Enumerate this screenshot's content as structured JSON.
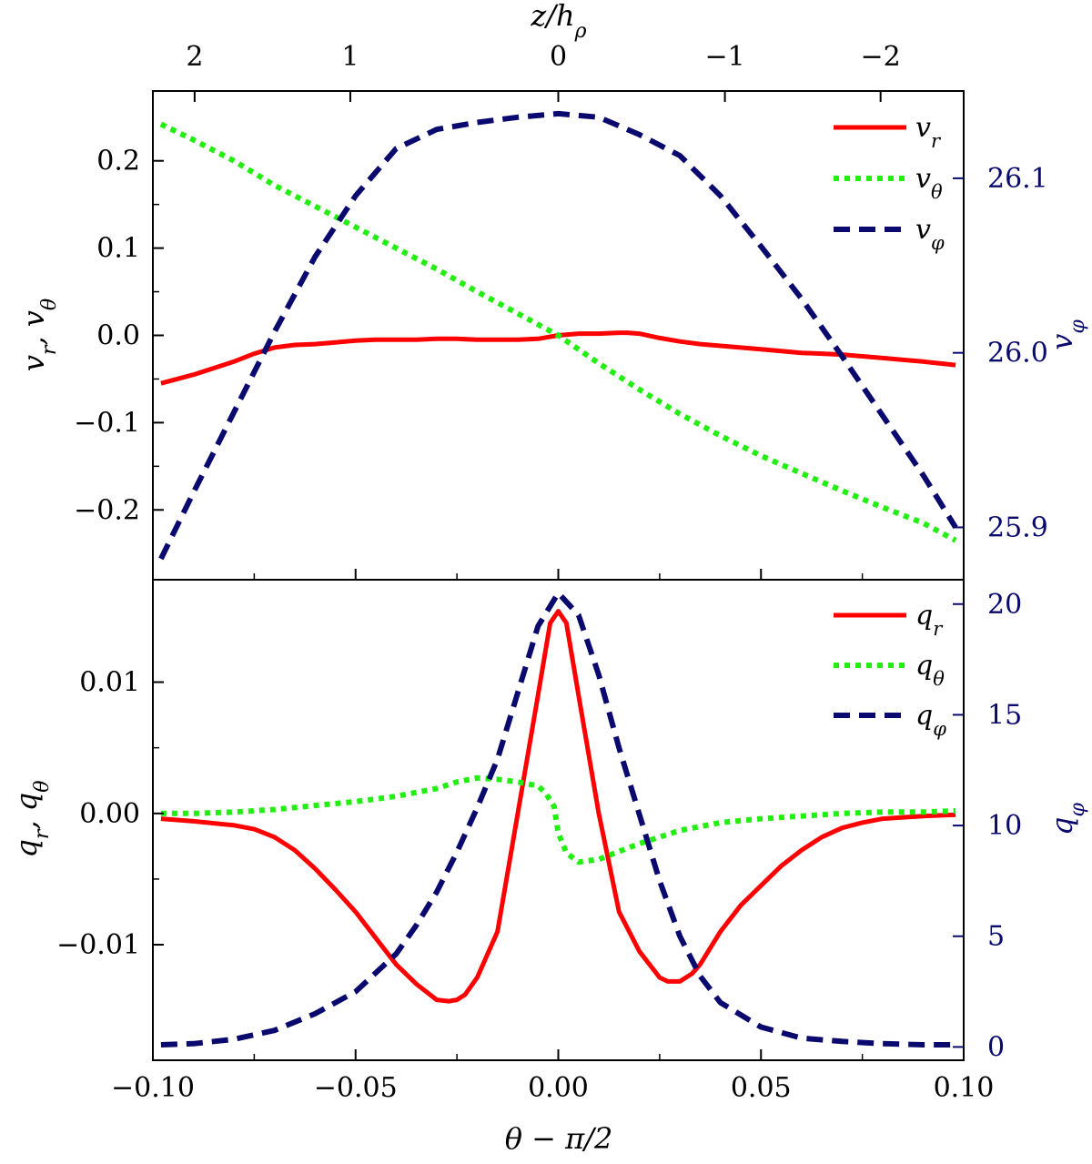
{
  "colors": {
    "red": "#ff0000",
    "green": "#22ee11",
    "navy": "#0a0a6e",
    "axis": "#000000"
  },
  "chart_data": [
    {
      "type": "line",
      "panel": "top",
      "xlim": [
        -0.1,
        0.1
      ],
      "ylabel_left": "v_r, v_θ",
      "ylabel_right": "v_φ",
      "ylim_left": [
        -0.28,
        0.28
      ],
      "ylim_right": [
        25.87,
        26.15
      ],
      "yticks_left": [
        {
          "v": -0.2,
          "t": "−0.2"
        },
        {
          "v": -0.1,
          "t": "−0.1"
        },
        {
          "v": 0.0,
          "t": "0.0"
        },
        {
          "v": 0.1,
          "t": "0.1"
        },
        {
          "v": 0.2,
          "t": "0.2"
        }
      ],
      "yticks_right": [
        {
          "v": 25.9,
          "t": "25.9"
        },
        {
          "v": 26.0,
          "t": "26.0"
        },
        {
          "v": 26.1,
          "t": "26.1"
        }
      ],
      "top_axis_label": "z/h_ρ",
      "top_ticks": [
        {
          "x": -0.0897,
          "t": "2"
        },
        {
          "x": -0.0513,
          "t": "1"
        },
        {
          "x": 0.0,
          "t": "0"
        },
        {
          "x": 0.0411,
          "t": "−1"
        },
        {
          "x": 0.0795,
          "t": "−2"
        }
      ],
      "series": [
        {
          "name": "v_r",
          "label": "v",
          "sub": "r",
          "axis": "left",
          "color": "red",
          "style": "solid",
          "x": [
            -0.098,
            -0.09,
            -0.08,
            -0.075,
            -0.07,
            -0.065,
            -0.06,
            -0.055,
            -0.05,
            -0.045,
            -0.04,
            -0.035,
            -0.03,
            -0.025,
            -0.02,
            -0.015,
            -0.01,
            -0.005,
            0.0,
            0.005,
            0.01,
            0.015,
            0.017,
            0.02,
            0.025,
            0.03,
            0.035,
            0.04,
            0.045,
            0.05,
            0.055,
            0.06,
            0.065,
            0.07,
            0.075,
            0.08,
            0.085,
            0.09,
            0.098
          ],
          "y": [
            -0.055,
            -0.045,
            -0.03,
            -0.021,
            -0.014,
            -0.011,
            -0.01,
            -0.008,
            -0.006,
            -0.005,
            -0.005,
            -0.005,
            -0.004,
            -0.004,
            -0.005,
            -0.005,
            -0.005,
            -0.004,
            0.0,
            0.002,
            0.002,
            0.003,
            0.003,
            0.002,
            -0.003,
            -0.007,
            -0.01,
            -0.012,
            -0.014,
            -0.016,
            -0.018,
            -0.02,
            -0.021,
            -0.022,
            -0.024,
            -0.026,
            -0.028,
            -0.03,
            -0.034
          ]
        },
        {
          "name": "v_θ",
          "label": "v",
          "sub": "θ",
          "axis": "left",
          "color": "green",
          "style": "dotted",
          "x": [
            -0.098,
            -0.09,
            -0.08,
            -0.07,
            -0.06,
            -0.05,
            -0.04,
            -0.03,
            -0.02,
            -0.01,
            0.0,
            0.01,
            0.02,
            0.03,
            0.04,
            0.05,
            0.06,
            0.07,
            0.08,
            0.09,
            0.098
          ],
          "y": [
            0.242,
            0.224,
            0.2,
            0.172,
            0.148,
            0.124,
            0.1,
            0.076,
            0.05,
            0.025,
            0.0,
            -0.032,
            -0.062,
            -0.09,
            -0.115,
            -0.138,
            -0.158,
            -0.178,
            -0.197,
            -0.215,
            -0.235
          ]
        },
        {
          "name": "v_φ",
          "label": "v",
          "sub": "φ",
          "axis": "right",
          "color": "navy",
          "style": "dashed",
          "x": [
            -0.098,
            -0.09,
            -0.08,
            -0.07,
            -0.06,
            -0.05,
            -0.04,
            -0.03,
            -0.02,
            -0.01,
            0.0,
            0.01,
            0.02,
            0.03,
            0.04,
            0.05,
            0.06,
            0.07,
            0.08,
            0.09,
            0.098
          ],
          "y": [
            25.882,
            25.92,
            25.966,
            26.012,
            26.055,
            26.09,
            26.117,
            26.128,
            26.132,
            26.135,
            26.137,
            26.135,
            26.125,
            26.113,
            26.09,
            26.061,
            26.031,
            25.998,
            25.964,
            25.93,
            25.9
          ]
        }
      ]
    },
    {
      "type": "line",
      "panel": "bottom",
      "xlim": [
        -0.1,
        0.1
      ],
      "xlabel": "θ − π/2",
      "xticks": [
        {
          "v": -0.1,
          "t": "−0.10"
        },
        {
          "v": -0.05,
          "t": "−0.05"
        },
        {
          "v": 0.0,
          "t": "0.00"
        },
        {
          "v": 0.05,
          "t": "0.05"
        },
        {
          "v": 0.1,
          "t": "0.10"
        }
      ],
      "ylabel_left": "q_r, q_θ",
      "ylabel_right": "q_φ",
      "ylim_left": [
        -0.0188,
        0.0178
      ],
      "ylim_right": [
        -0.6,
        21.1
      ],
      "yticks_left": [
        {
          "v": -0.01,
          "t": "−0.01"
        },
        {
          "v": 0.0,
          "t": "0.00"
        },
        {
          "v": 0.01,
          "t": "0.01"
        }
      ],
      "yticks_right": [
        {
          "v": 0,
          "t": "0"
        },
        {
          "v": 5,
          "t": "5"
        },
        {
          "v": 10,
          "t": "10"
        },
        {
          "v": 15,
          "t": "15"
        },
        {
          "v": 20,
          "t": "20"
        }
      ],
      "series": [
        {
          "name": "q_r",
          "label": "q",
          "sub": "r",
          "axis": "left",
          "color": "red",
          "style": "solid",
          "x": [
            -0.098,
            -0.09,
            -0.08,
            -0.075,
            -0.07,
            -0.065,
            -0.06,
            -0.055,
            -0.05,
            -0.045,
            -0.04,
            -0.035,
            -0.03,
            -0.027,
            -0.025,
            -0.023,
            -0.02,
            -0.015,
            -0.01,
            -0.005,
            -0.002,
            0.0,
            0.002,
            0.005,
            0.01,
            0.015,
            0.02,
            0.025,
            0.027,
            0.03,
            0.033,
            0.035,
            0.04,
            0.045,
            0.05,
            0.055,
            0.06,
            0.065,
            0.07,
            0.075,
            0.08,
            0.085,
            0.09,
            0.098
          ],
          "y": [
            -0.0004,
            -0.0006,
            -0.0009,
            -0.0012,
            -0.0018,
            -0.0028,
            -0.0042,
            -0.0058,
            -0.0075,
            -0.0095,
            -0.0115,
            -0.013,
            -0.0142,
            -0.0143,
            -0.0142,
            -0.0138,
            -0.0125,
            -0.009,
            0.0,
            0.009,
            0.0145,
            0.0154,
            0.0145,
            0.009,
            0.0,
            -0.0075,
            -0.0105,
            -0.0125,
            -0.0128,
            -0.0128,
            -0.0122,
            -0.0115,
            -0.009,
            -0.007,
            -0.0055,
            -0.004,
            -0.0028,
            -0.0018,
            -0.0011,
            -0.0007,
            -0.0004,
            -0.0003,
            -0.0002,
            -0.0001
          ]
        },
        {
          "name": "q_θ",
          "label": "q",
          "sub": "θ",
          "axis": "left",
          "color": "green",
          "style": "dotted",
          "x": [
            -0.098,
            -0.09,
            -0.08,
            -0.07,
            -0.06,
            -0.05,
            -0.04,
            -0.03,
            -0.025,
            -0.02,
            -0.015,
            -0.01,
            -0.005,
            -0.003,
            -0.001,
            0.0,
            0.002,
            0.005,
            0.01,
            0.015,
            0.02,
            0.03,
            0.04,
            0.05,
            0.06,
            0.07,
            0.08,
            0.09,
            0.098
          ],
          "y": [
            0.0,
            0.0,
            0.0001,
            0.0003,
            0.0006,
            0.0009,
            0.0013,
            0.0019,
            0.0024,
            0.0027,
            0.0026,
            0.0024,
            0.0021,
            0.0015,
            0.0005,
            -0.0015,
            -0.003,
            -0.0037,
            -0.0035,
            -0.0029,
            -0.0023,
            -0.0013,
            -0.0007,
            -0.0004,
            -0.0002,
            0.0,
            0.0001,
            0.0001,
            0.0002
          ]
        },
        {
          "name": "q_φ",
          "label": "q",
          "sub": "φ",
          "axis": "right",
          "color": "navy",
          "style": "dashed",
          "x": [
            -0.098,
            -0.09,
            -0.08,
            -0.07,
            -0.06,
            -0.05,
            -0.04,
            -0.035,
            -0.03,
            -0.025,
            -0.02,
            -0.015,
            -0.01,
            -0.005,
            0.0,
            0.005,
            0.01,
            0.015,
            0.02,
            0.025,
            0.03,
            0.035,
            0.04,
            0.05,
            0.06,
            0.07,
            0.08,
            0.09,
            0.098
          ],
          "y": [
            0.1,
            0.15,
            0.35,
            0.75,
            1.5,
            2.5,
            4.2,
            5.5,
            7.0,
            8.8,
            10.8,
            13.0,
            16.0,
            19.0,
            20.5,
            19.5,
            16.8,
            13.5,
            10.5,
            7.5,
            5.0,
            3.2,
            2.0,
            0.9,
            0.4,
            0.25,
            0.15,
            0.1,
            0.1
          ]
        }
      ]
    }
  ]
}
